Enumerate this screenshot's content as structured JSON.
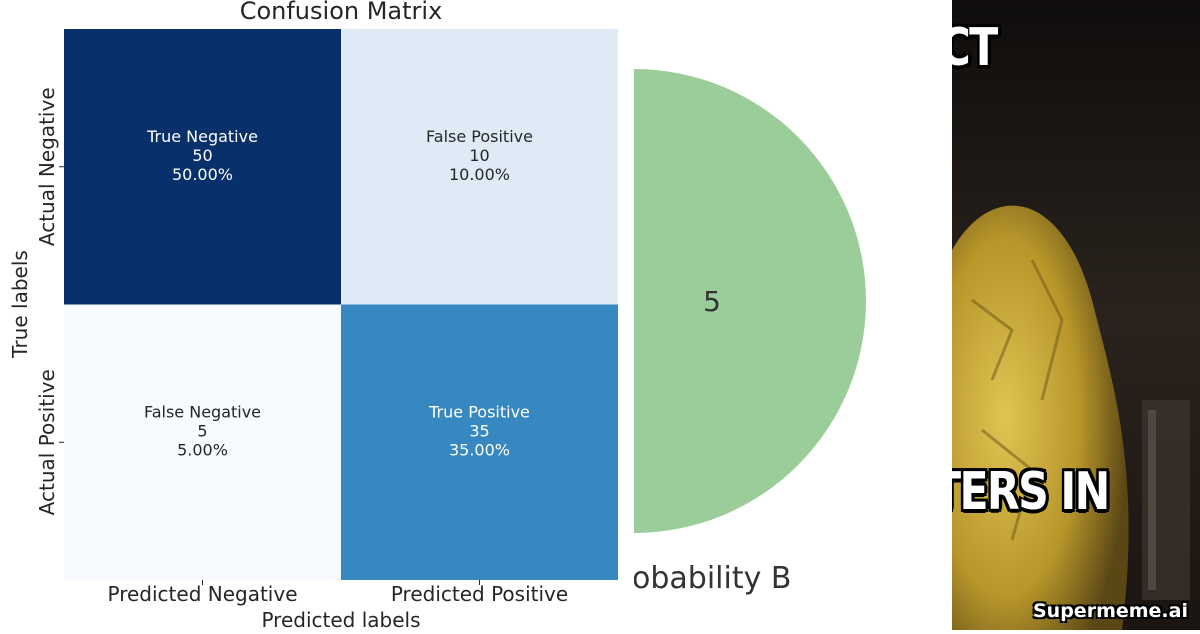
{
  "chart_data": [
    {
      "type": "heatmap",
      "title": "Confusion Matrix",
      "xlabel": "Predicted labels",
      "ylabel": "True labels",
      "x_categories": [
        "Predicted Negative",
        "Predicted Positive"
      ],
      "y_categories": [
        "Actual Negative",
        "Actual Positive"
      ],
      "cells": [
        [
          {
            "label": "True Negative",
            "count": "50",
            "percent": "50.00%",
            "value": 50,
            "fill": "#08306b",
            "text_color": "#ffffff"
          },
          {
            "label": "False Positive",
            "count": "10",
            "percent": "10.00%",
            "value": 10,
            "fill": "#deebf7",
            "text_color": "#262626"
          }
        ],
        [
          {
            "label": "False Negative",
            "count": "5",
            "percent": "5.00%",
            "value": 5,
            "fill": "#f7fbff",
            "text_color": "#262626"
          },
          {
            "label": "True Positive",
            "count": "35",
            "percent": "35.00%",
            "value": 35,
            "fill": "#3787c0",
            "text_color": "#ffffff"
          }
        ]
      ],
      "colormap": "Blues"
    },
    {
      "type": "pie",
      "slices": [
        {
          "label": "5",
          "value": 5,
          "color": "#9bcd9b"
        }
      ],
      "caption": "obability B"
    }
  ],
  "meme": {
    "top_text": "ECT",
    "bottom_text": "TERS IN",
    "watermark": "Supermeme.ai",
    "colors": {
      "cloth": "#c8a62e",
      "background": "#1a1613"
    }
  }
}
